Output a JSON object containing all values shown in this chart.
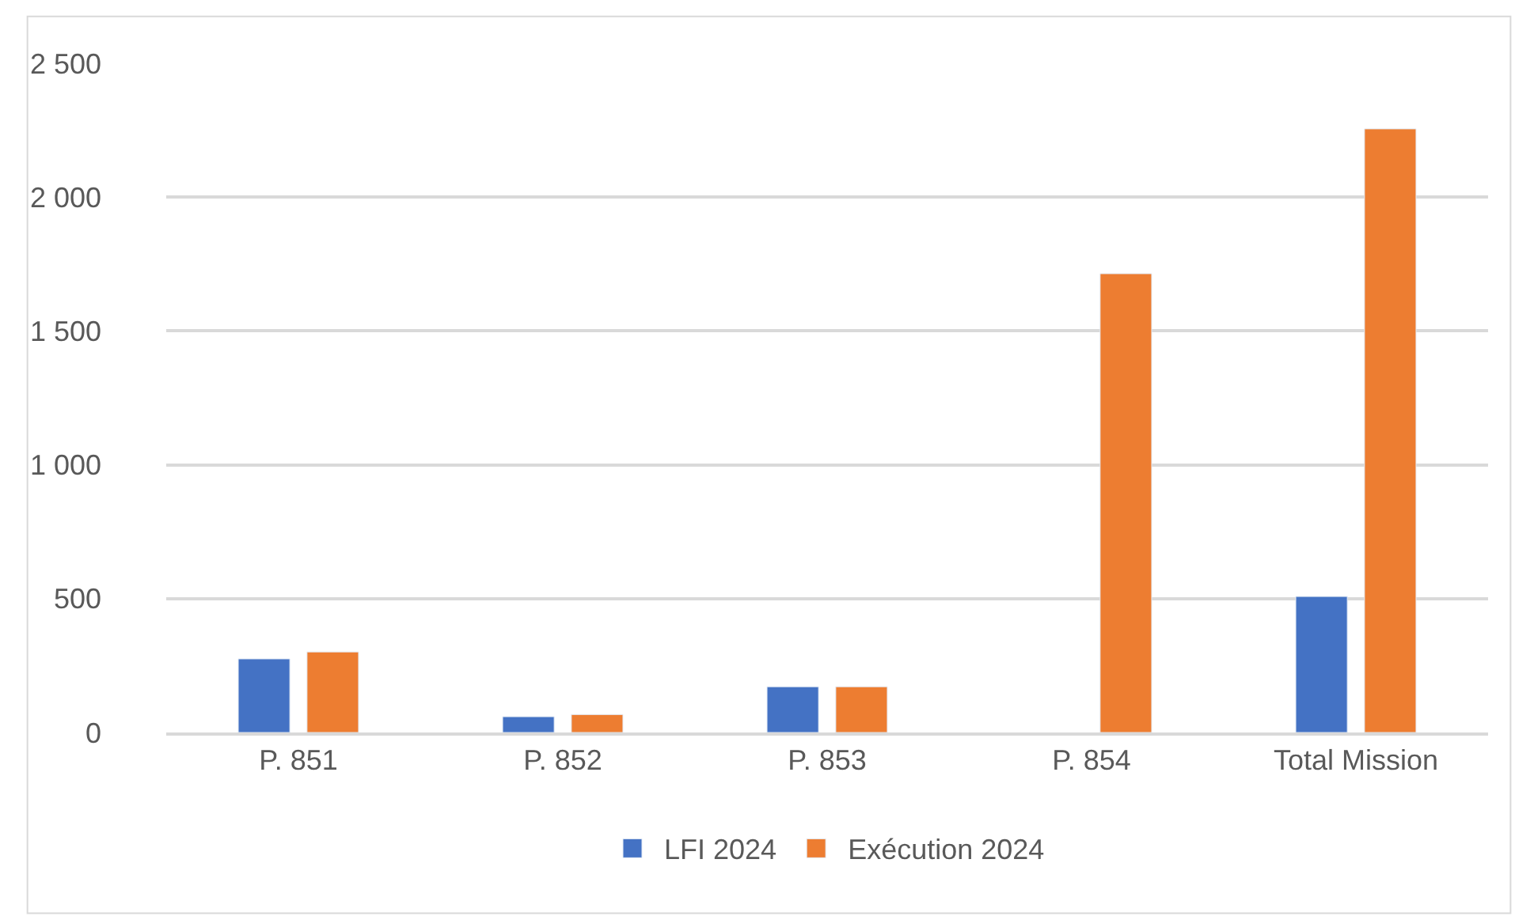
{
  "chart_data": {
    "type": "bar",
    "categories": [
      "P. 851",
      "P. 852",
      "P. 853",
      "P. 854",
      "Total Mission"
    ],
    "series": [
      {
        "name": "LFI 2024",
        "color": "#4472c4",
        "values": [
          275,
          59,
          171,
          null,
          508
        ]
      },
      {
        "name": "Exécution 2024",
        "color": "#ed7d31",
        "values": [
          301,
          67,
          171,
          1714,
          2255
        ]
      }
    ],
    "ylim": [
      0,
      2500
    ],
    "yticks": [
      {
        "value": 0,
        "label": "0"
      },
      {
        "value": 500,
        "label": "500"
      },
      {
        "value": 1000,
        "label": "1 000"
      },
      {
        "value": 1500,
        "label": "1 500"
      },
      {
        "value": 2000,
        "label": "2 000"
      },
      {
        "value": 2500,
        "label": "2 500"
      }
    ],
    "grid": "y",
    "legend": "bottom"
  }
}
